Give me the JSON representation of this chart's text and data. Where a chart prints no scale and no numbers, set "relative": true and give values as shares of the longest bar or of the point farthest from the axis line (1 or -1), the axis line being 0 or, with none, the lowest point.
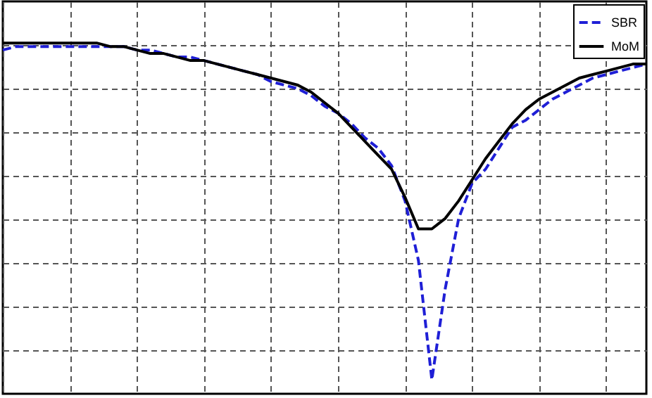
{
  "chart_data": {
    "type": "line",
    "relative": true,
    "grid": true,
    "legend": "top right",
    "tick_labels": false,
    "categories": [
      null,
      null,
      null,
      null,
      null,
      null,
      null,
      null,
      null,
      null,
      null,
      null,
      null,
      null,
      null,
      null,
      null,
      null,
      null,
      null,
      null,
      null,
      null,
      null,
      null,
      null,
      null,
      null,
      null,
      null,
      null,
      null,
      null,
      null,
      null,
      null,
      null,
      null,
      null,
      null,
      null,
      null,
      null,
      null,
      null,
      null,
      null,
      null,
      null
    ],
    "series": [
      {
        "name": "SBR",
        "color": "#1f1fd6",
        "line_style": "dashed",
        "values": [
          0.98,
          0.99,
          0.99,
          0.99,
          0.99,
          0.99,
          0.99,
          0.99,
          0.99,
          0.99,
          0.98,
          0.98,
          0.97,
          0.96,
          0.96,
          0.95,
          0.94,
          0.93,
          0.92,
          0.91,
          0.89,
          0.88,
          0.87,
          0.85,
          0.82,
          0.8,
          0.77,
          0.73,
          0.7,
          0.65,
          0.55,
          0.38,
          0.04,
          0.3,
          0.5,
          0.6,
          0.64,
          0.7,
          0.76,
          0.78,
          0.81,
          0.84,
          0.86,
          0.88,
          0.9,
          0.91,
          0.92,
          0.93,
          0.94
        ]
      },
      {
        "name": "MoM",
        "color": "#000000",
        "line_style": "solid",
        "values": [
          1.0,
          1.0,
          1.0,
          1.0,
          1.0,
          1.0,
          1.0,
          1.0,
          0.99,
          0.99,
          0.98,
          0.97,
          0.97,
          0.96,
          0.95,
          0.95,
          0.94,
          0.93,
          0.92,
          0.91,
          0.9,
          0.89,
          0.88,
          0.86,
          0.83,
          0.8,
          0.76,
          0.72,
          0.68,
          0.64,
          0.56,
          0.47,
          0.47,
          0.5,
          0.55,
          0.61,
          0.67,
          0.72,
          0.77,
          0.81,
          0.84,
          0.86,
          0.88,
          0.9,
          0.91,
          0.92,
          0.93,
          0.94,
          0.94
        ]
      }
    ]
  }
}
